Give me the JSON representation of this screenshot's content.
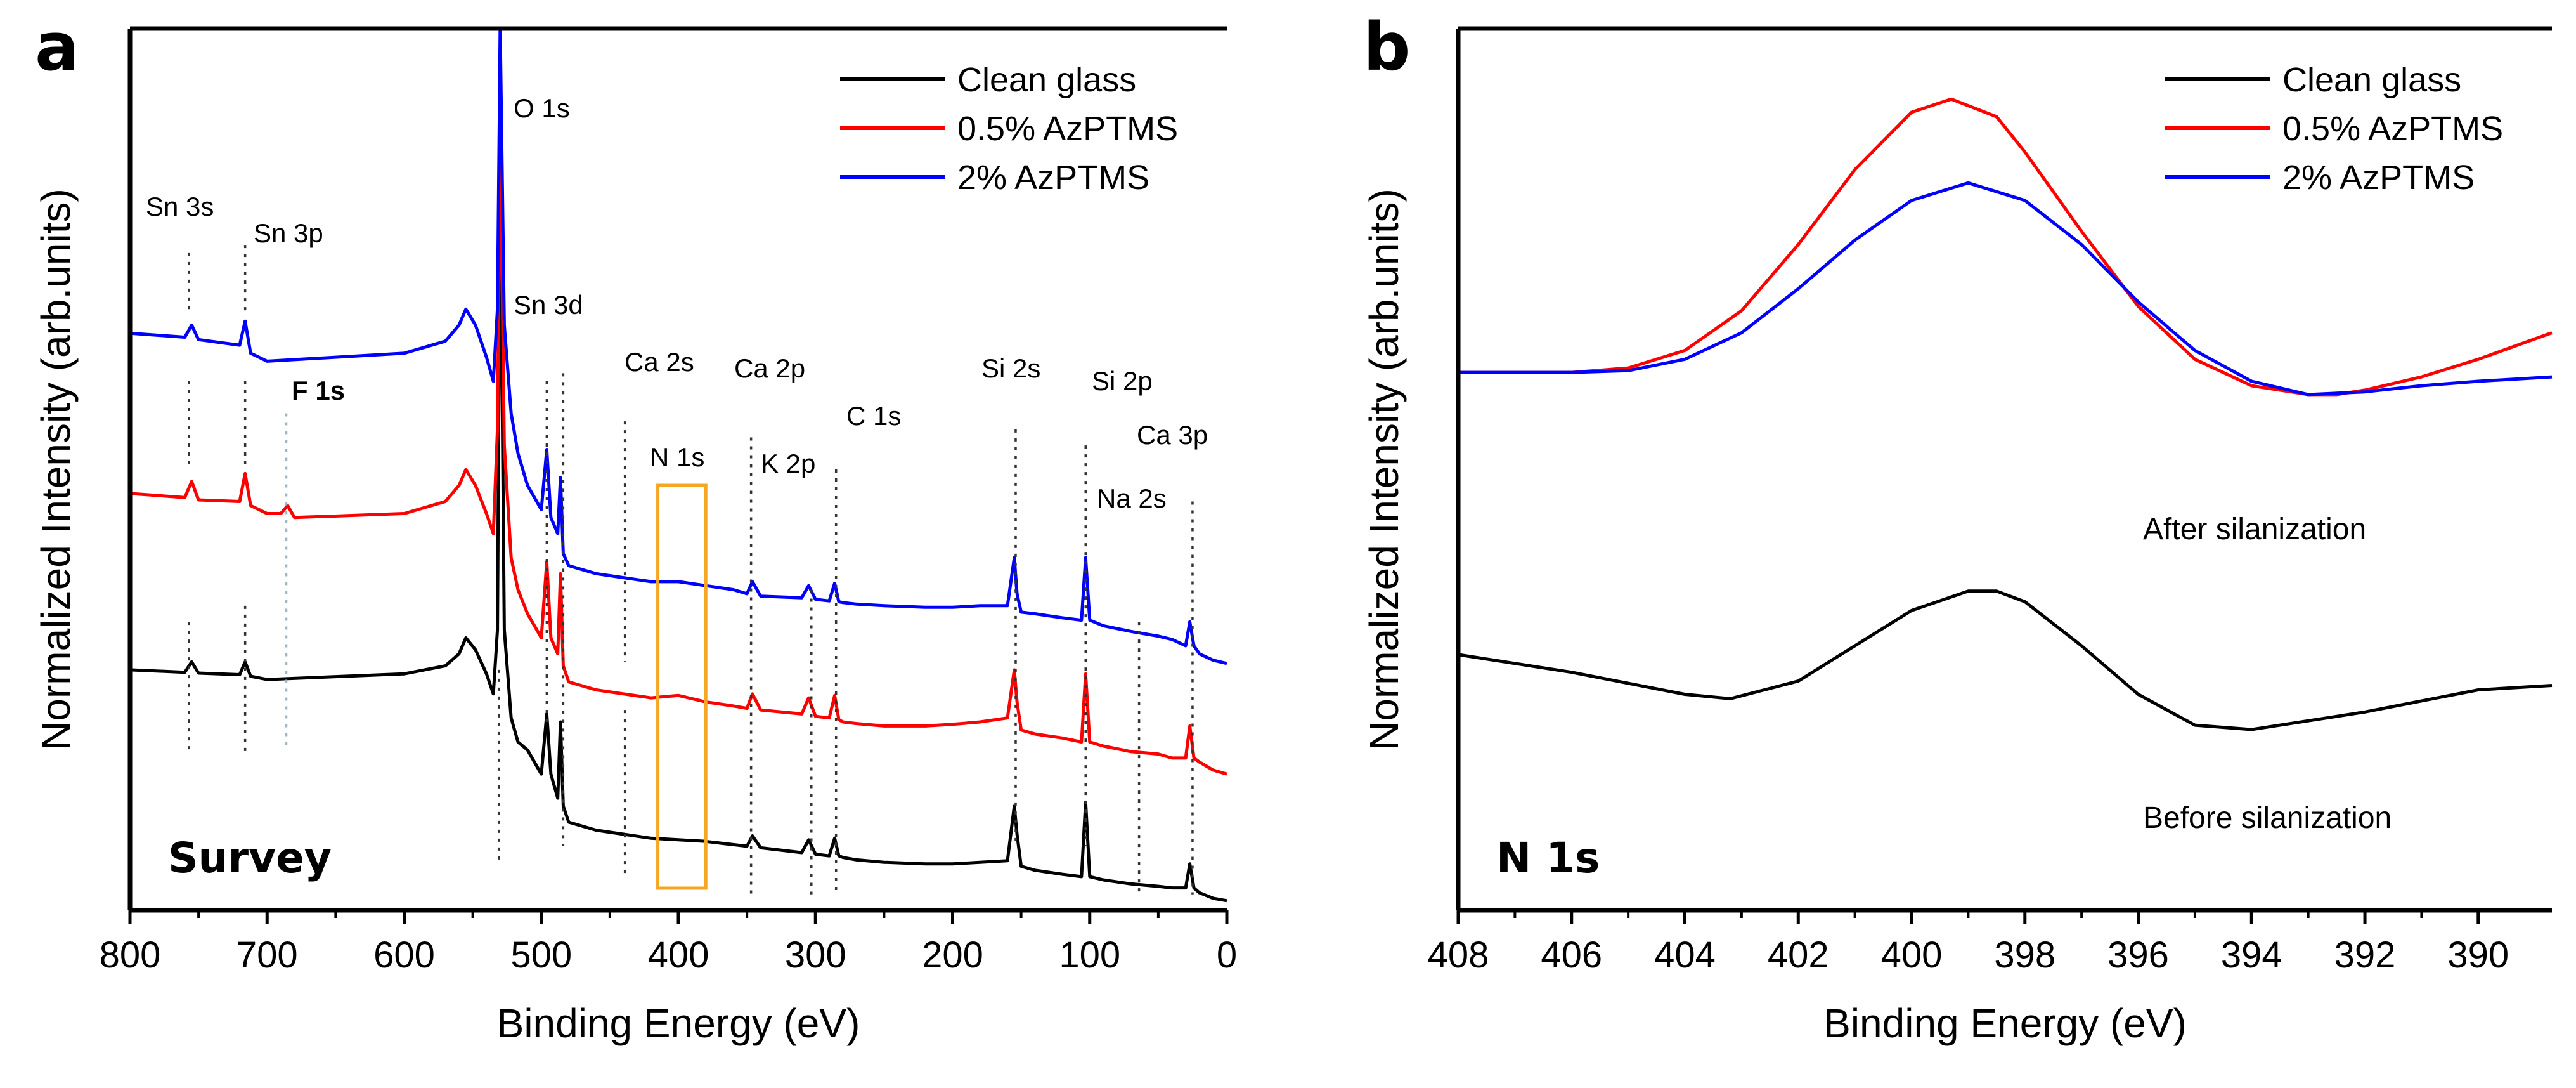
{
  "figure": {
    "colors": {
      "clean": "#000000",
      "p05": "#ff0000",
      "p2": "#0000ff",
      "box": "#f5a623",
      "f1s": "#9fb8c8"
    }
  },
  "chart_data": [
    {
      "panel": "a",
      "type": "line",
      "title": "",
      "xlabel": "Binding Energy (eV)",
      "ylabel": "Normalized Intensity (arb.units)",
      "xlim": [
        800,
        0
      ],
      "ylim": [
        0,
        11
      ],
      "x_reversed": true,
      "x_ticks": [
        800,
        700,
        600,
        500,
        400,
        300,
        200,
        100,
        0
      ],
      "corner_label": "Survey",
      "legend": {
        "position": "top-right",
        "entries": [
          "Clean glass",
          "0.5% AzPTMS",
          "2% AzPTMS"
        ]
      },
      "series": [
        {
          "name": "Clean glass",
          "color": "#000000",
          "x": [
            800,
            760,
            755,
            750,
            720,
            716,
            712,
            700,
            600,
            570,
            560,
            555,
            548,
            540,
            535,
            532,
            530,
            527,
            522,
            517,
            510,
            500,
            496,
            493,
            488,
            486,
            484,
            480,
            460,
            440,
            420,
            400,
            380,
            360,
            350,
            346,
            340,
            310,
            305,
            300,
            290,
            286,
            283,
            280,
            270,
            250,
            220,
            200,
            180,
            160,
            155,
            153,
            150,
            140,
            120,
            106,
            103,
            100,
            90,
            70,
            50,
            40,
            30,
            27,
            24,
            20,
            10,
            0
          ],
          "y": [
            3.0,
            2.97,
            3.1,
            2.96,
            2.94,
            3.1,
            2.92,
            2.88,
            2.95,
            3.05,
            3.2,
            3.4,
            3.25,
            2.95,
            2.7,
            3.5,
            9.25,
            3.5,
            2.4,
            2.1,
            2.0,
            1.7,
            2.45,
            1.7,
            1.4,
            2.35,
            1.3,
            1.1,
            1.0,
            0.95,
            0.9,
            0.88,
            0.86,
            0.82,
            0.8,
            0.93,
            0.78,
            0.72,
            0.88,
            0.7,
            0.68,
            0.9,
            0.68,
            0.66,
            0.63,
            0.6,
            0.58,
            0.58,
            0.6,
            0.62,
            1.3,
            0.95,
            0.55,
            0.5,
            0.45,
            0.42,
            1.35,
            0.42,
            0.38,
            0.33,
            0.3,
            0.28,
            0.28,
            0.58,
            0.28,
            0.22,
            0.15,
            0.12
          ]
        },
        {
          "name": "0.5% AzPTMS",
          "color": "#ff0000",
          "x": [
            800,
            760,
            755,
            750,
            720,
            716,
            712,
            700,
            690,
            685,
            680,
            600,
            570,
            560,
            555,
            548,
            540,
            535,
            532,
            530,
            527,
            522,
            517,
            510,
            500,
            496,
            493,
            488,
            486,
            484,
            480,
            460,
            440,
            420,
            400,
            380,
            360,
            350,
            346,
            340,
            310,
            305,
            300,
            290,
            286,
            283,
            280,
            270,
            250,
            220,
            200,
            180,
            160,
            155,
            153,
            150,
            140,
            120,
            106,
            103,
            100,
            90,
            70,
            50,
            40,
            30,
            27,
            24,
            20,
            10,
            0
          ],
          "y": [
            5.2,
            5.15,
            5.35,
            5.12,
            5.1,
            5.45,
            5.05,
            4.95,
            4.95,
            5.05,
            4.9,
            4.95,
            5.1,
            5.3,
            5.5,
            5.3,
            4.95,
            4.7,
            6.0,
            9.75,
            5.8,
            4.4,
            4.0,
            3.7,
            3.4,
            4.35,
            3.4,
            3.2,
            4.2,
            3.05,
            2.85,
            2.75,
            2.7,
            2.65,
            2.68,
            2.6,
            2.55,
            2.52,
            2.7,
            2.5,
            2.45,
            2.65,
            2.42,
            2.4,
            2.68,
            2.38,
            2.35,
            2.33,
            2.3,
            2.3,
            2.32,
            2.35,
            2.4,
            3.0,
            2.6,
            2.25,
            2.2,
            2.15,
            2.1,
            2.95,
            2.1,
            2.05,
            1.98,
            1.95,
            1.9,
            1.9,
            2.3,
            1.9,
            1.85,
            1.75,
            1.7
          ]
        },
        {
          "name": "2% AzPTMS",
          "color": "#0000ff",
          "x": [
            800,
            760,
            755,
            750,
            720,
            716,
            712,
            700,
            600,
            570,
            560,
            555,
            548,
            540,
            535,
            532,
            530,
            527,
            522,
            517,
            510,
            500,
            496,
            493,
            488,
            486,
            484,
            480,
            460,
            440,
            420,
            400,
            380,
            360,
            350,
            346,
            340,
            310,
            305,
            300,
            290,
            286,
            283,
            280,
            270,
            250,
            220,
            200,
            180,
            160,
            155,
            153,
            150,
            140,
            120,
            106,
            103,
            100,
            90,
            70,
            50,
            40,
            30,
            27,
            24,
            20,
            10,
            0
          ],
          "y": [
            7.2,
            7.15,
            7.3,
            7.12,
            7.05,
            7.35,
            6.95,
            6.85,
            6.95,
            7.1,
            7.3,
            7.5,
            7.3,
            6.9,
            6.6,
            7.5,
            11.0,
            7.3,
            6.2,
            5.7,
            5.3,
            5.0,
            5.75,
            4.9,
            4.7,
            5.4,
            4.45,
            4.3,
            4.2,
            4.15,
            4.1,
            4.1,
            4.05,
            4.0,
            3.95,
            4.1,
            3.92,
            3.9,
            4.05,
            3.88,
            3.86,
            4.08,
            3.85,
            3.84,
            3.82,
            3.8,
            3.78,
            3.78,
            3.8,
            3.8,
            4.4,
            3.95,
            3.72,
            3.7,
            3.65,
            3.62,
            4.4,
            3.62,
            3.55,
            3.48,
            3.42,
            3.38,
            3.3,
            3.6,
            3.3,
            3.2,
            3.12,
            3.08
          ]
        }
      ],
      "annotations": [
        {
          "text": "Sn 3s",
          "x": 757
        },
        {
          "text": "Sn 3p",
          "x": 716
        },
        {
          "text": "F 1s",
          "x": 686
        },
        {
          "text": "O 1s",
          "x": 531
        },
        {
          "text": "Sn 3d",
          "x": 487
        },
        {
          "text": "Ca 2s",
          "x": 439
        },
        {
          "text": "N 1s",
          "x": 400
        },
        {
          "text": "Ca 2p",
          "x": 347
        },
        {
          "text": "K 2p",
          "x": 294
        },
        {
          "text": "C 1s",
          "x": 285
        },
        {
          "text": "Si 2s",
          "x": 154
        },
        {
          "text": "Si 2p",
          "x": 103
        },
        {
          "text": "Na 2s",
          "x": 64
        },
        {
          "text": "Ca 3p",
          "x": 25
        }
      ],
      "highlight_box": {
        "label": "N 1s",
        "x_range": [
          415,
          380
        ]
      }
    },
    {
      "panel": "b",
      "type": "line",
      "title": "",
      "xlabel": "Binding Energy (eV)",
      "ylabel": "Normalized Intensity (arb.units)",
      "xlim": [
        408,
        388.7
      ],
      "ylim": [
        0,
        10
      ],
      "x_reversed": true,
      "x_ticks": [
        408,
        406,
        404,
        402,
        400,
        398,
        396,
        394,
        392,
        390
      ],
      "corner_label": "N 1s",
      "legend": {
        "position": "top-right",
        "entries": [
          "Clean glass",
          "0.5% AzPTMS",
          "2% AzPTMS"
        ]
      },
      "series": [
        {
          "name": "Clean glass",
          "color": "#000000",
          "x": [
            408,
            406,
            404,
            403.2,
            402,
            401,
            400,
            399,
            398.5,
            398,
            397,
            396,
            395,
            394,
            393,
            392,
            390,
            388.7
          ],
          "y": [
            2.9,
            2.7,
            2.45,
            2.4,
            2.6,
            3.0,
            3.4,
            3.62,
            3.62,
            3.5,
            3.0,
            2.45,
            2.1,
            2.05,
            2.15,
            2.25,
            2.5,
            2.55
          ]
        },
        {
          "name": "0.5% AzPTMS",
          "color": "#ff0000",
          "x": [
            408,
            406,
            405,
            404,
            403,
            402,
            401,
            400,
            399.3,
            398.5,
            398,
            397,
            396,
            395,
            394,
            393,
            392.5,
            392,
            391,
            390,
            388.7
          ],
          "y": [
            6.1,
            6.1,
            6.15,
            6.35,
            6.8,
            7.55,
            8.4,
            9.05,
            9.2,
            9.0,
            8.6,
            7.7,
            6.85,
            6.25,
            5.95,
            5.85,
            5.85,
            5.9,
            6.05,
            6.25,
            6.55
          ]
        },
        {
          "name": "2% AzPTMS",
          "color": "#0000ff",
          "x": [
            408,
            406,
            405,
            404,
            403,
            402,
            401,
            400,
            399,
            398,
            397,
            396,
            395,
            394,
            393,
            392,
            391,
            390,
            388.7
          ],
          "y": [
            6.1,
            6.1,
            6.12,
            6.25,
            6.55,
            7.05,
            7.6,
            8.05,
            8.25,
            8.05,
            7.55,
            6.9,
            6.35,
            6.0,
            5.85,
            5.88,
            5.95,
            6.0,
            6.05
          ]
        }
      ],
      "annotations": [
        {
          "text": "After silanization"
        },
        {
          "text": "Before silanization"
        }
      ]
    }
  ]
}
